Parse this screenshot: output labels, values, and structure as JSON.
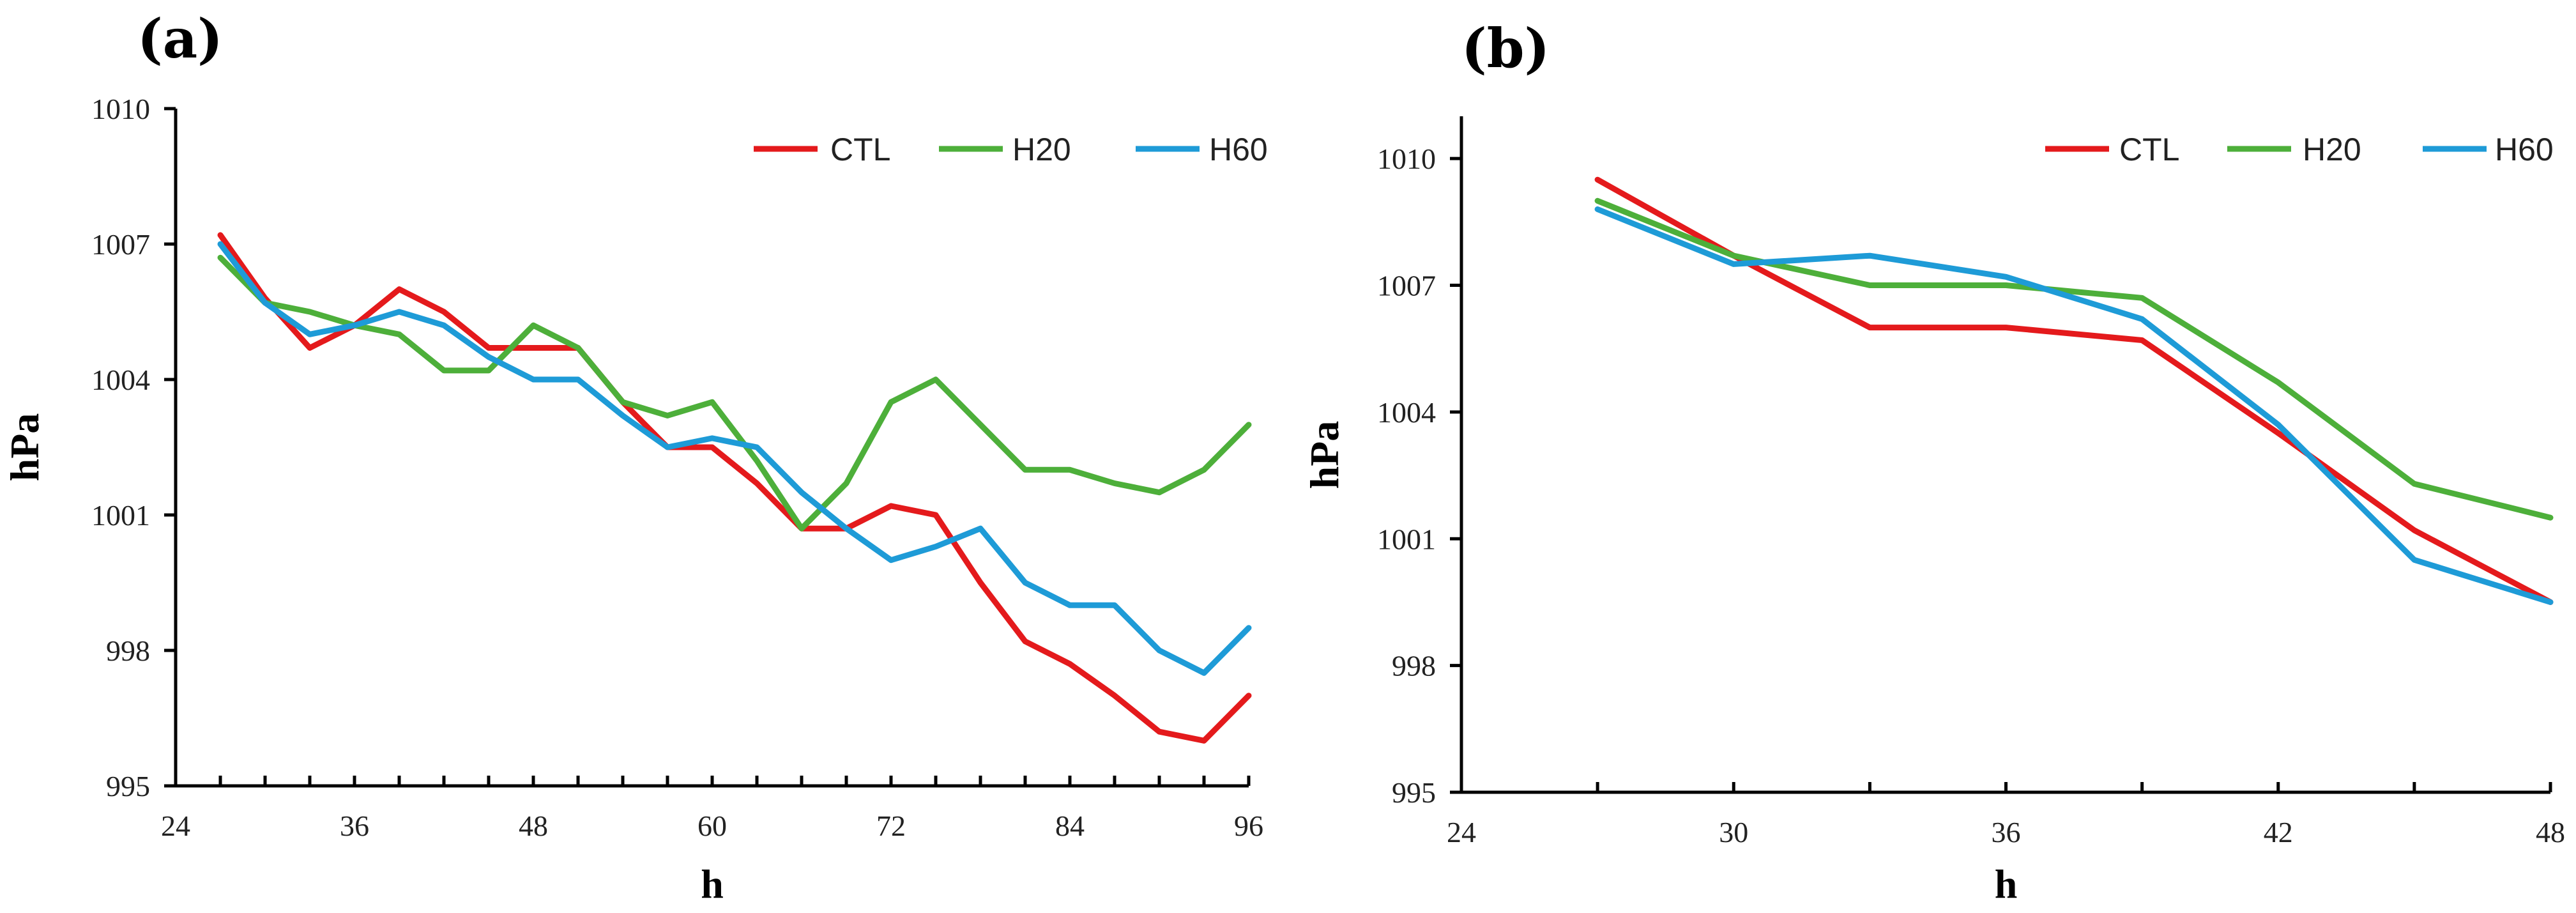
{
  "chart_data": [
    {
      "panel": "(a)",
      "type": "line",
      "xlabel": "h",
      "ylabel": "hPa",
      "xlim": [
        24,
        96
      ],
      "ylim": [
        995,
        1010
      ],
      "xticks": [
        24,
        36,
        48,
        60,
        72,
        84,
        96
      ],
      "yticks": [
        995,
        998,
        1001,
        1004,
        1007,
        1010
      ],
      "legend": {
        "position": "top-right"
      },
      "x": [
        27,
        30,
        33,
        36,
        39,
        42,
        45,
        48,
        51,
        54,
        57,
        60,
        63,
        66,
        69,
        72,
        75,
        78,
        81,
        84,
        87,
        90,
        93,
        96
      ],
      "series": [
        {
          "name": "CTL",
          "color": "#e41a1c",
          "values": [
            1007.2,
            1005.8,
            1004.7,
            1005.2,
            1006.0,
            1005.5,
            1004.7,
            1004.7,
            1004.7,
            1003.5,
            1002.5,
            1002.5,
            1001.7,
            1000.7,
            1000.7,
            1001.2,
            1001.0,
            999.5,
            998.2,
            997.7,
            997.0,
            996.2,
            996.0,
            997.0
          ]
        },
        {
          "name": "H20",
          "color": "#4daf3a",
          "values": [
            1006.7,
            1005.7,
            1005.5,
            1005.2,
            1005.0,
            1004.2,
            1004.2,
            1005.2,
            1004.7,
            1003.5,
            1003.2,
            1003.5,
            1002.2,
            1000.7,
            1001.7,
            1003.5,
            1004.0,
            1003.0,
            1002.0,
            1002.0,
            1001.7,
            1001.5,
            1002.0,
            1003.0
          ]
        },
        {
          "name": "H60",
          "color": "#1e9bd7",
          "values": [
            1007.0,
            1005.7,
            1005.0,
            1005.2,
            1005.5,
            1005.2,
            1004.5,
            1004.0,
            1004.0,
            1003.2,
            1002.5,
            1002.7,
            1002.5,
            1001.5,
            1000.7,
            1000.0,
            1000.3,
            1000.7,
            999.5,
            999.0,
            999.0,
            998.0,
            997.5,
            998.5
          ]
        }
      ]
    },
    {
      "panel": "(b)",
      "type": "line",
      "xlabel": "h",
      "ylabel": "hPa",
      "xlim": [
        24,
        48
      ],
      "ylim": [
        995,
        1011
      ],
      "xticks": [
        24,
        30,
        36,
        42,
        48
      ],
      "yticks": [
        995,
        998,
        1001,
        1004,
        1007,
        1010
      ],
      "legend": {
        "position": "top-right"
      },
      "x": [
        27,
        30,
        33,
        36,
        39,
        42,
        45,
        48
      ],
      "series": [
        {
          "name": "CTL",
          "color": "#e41a1c",
          "values": [
            1009.5,
            1007.7,
            1006.0,
            1006.0,
            1005.7,
            1003.5,
            1001.2,
            999.5
          ]
        },
        {
          "name": "H20",
          "color": "#4daf3a",
          "values": [
            1009.0,
            1007.7,
            1007.0,
            1007.0,
            1006.7,
            1004.7,
            1002.3,
            1001.5
          ]
        },
        {
          "name": "H60",
          "color": "#1e9bd7",
          "values": [
            1008.8,
            1007.5,
            1007.7,
            1007.2,
            1006.2,
            1003.7,
            1000.5,
            999.5
          ]
        }
      ]
    }
  ]
}
